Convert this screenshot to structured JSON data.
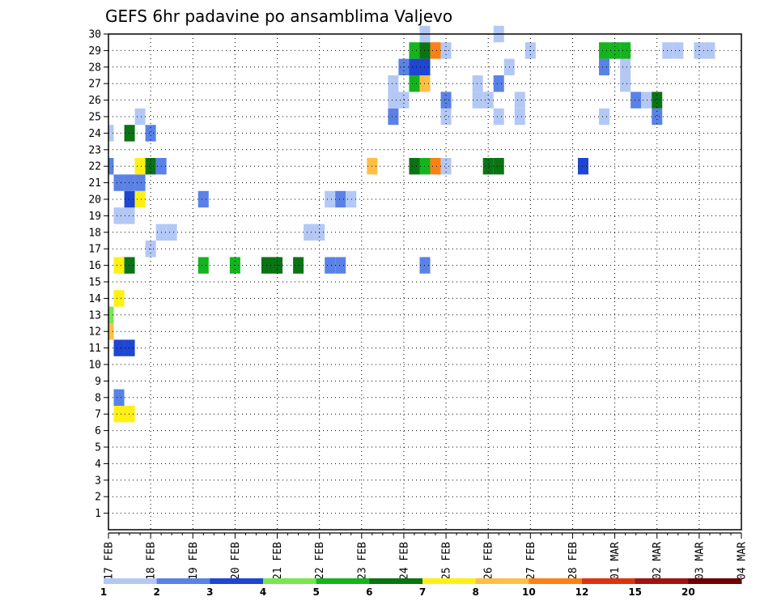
{
  "chart_data": {
    "type": "heatmap",
    "title": "GEFS 6hr padavine po ansamblima Valjevo",
    "x_ticks": [
      "17 FEB",
      "18 FEB",
      "19 FEB",
      "20 FEB",
      "21 FEB",
      "22 FEB",
      "23 FEB",
      "24 FEB",
      "25 FEB",
      "26 FEB",
      "27 FEB",
      "28 FEB",
      "01 MAR",
      "02 MAR",
      "03 MAR",
      "04 MAR"
    ],
    "y_ticks": [
      1,
      2,
      3,
      4,
      5,
      6,
      7,
      8,
      9,
      10,
      11,
      12,
      13,
      14,
      15,
      16,
      17,
      18,
      19,
      20,
      21,
      22,
      23,
      24,
      25,
      26,
      27,
      28,
      29,
      30
    ],
    "x_step_hours": 6,
    "y_range": [
      0,
      30
    ],
    "grid": true,
    "colorbar": {
      "labels": [
        "1",
        "2",
        "3",
        "4",
        "5",
        "6",
        "7",
        "8",
        "10",
        "12",
        "15",
        "20"
      ],
      "colors": [
        "#b4c8f5",
        "#5a82e6",
        "#1e46d2",
        "#78e650",
        "#14b41e",
        "#0a7314",
        "#fff014",
        "#ffbe46",
        "#fa8214",
        "#dc320f",
        "#a0140f",
        "#6e0000"
      ]
    },
    "cells": [
      {
        "m": 7,
        "t": 0,
        "c": 6
      },
      {
        "m": 7,
        "t": 1,
        "c": 6
      },
      {
        "m": 8,
        "t": 0,
        "c": 1
      },
      {
        "m": 11,
        "t": 0,
        "c": 2
      },
      {
        "m": 11,
        "t": 1,
        "c": 2
      },
      {
        "m": 12,
        "t": -1,
        "c": 7
      },
      {
        "m": 13,
        "t": -1,
        "c": 3
      },
      {
        "m": 14,
        "t": 0,
        "c": 6
      },
      {
        "m": 16,
        "t": 0,
        "c": 6
      },
      {
        "m": 16,
        "t": 1,
        "c": 5
      },
      {
        "m": 16,
        "t": 8,
        "c": 4
      },
      {
        "m": 16,
        "t": 11,
        "c": 4
      },
      {
        "m": 16,
        "t": 14,
        "c": 5
      },
      {
        "m": 16,
        "t": 15,
        "c": 5
      },
      {
        "m": 16,
        "t": 17,
        "c": 5
      },
      {
        "m": 16,
        "t": 20,
        "c": 1
      },
      {
        "m": 16,
        "t": 21,
        "c": 1
      },
      {
        "m": 16,
        "t": 29,
        "c": 1
      },
      {
        "m": 17,
        "t": 3,
        "c": 0
      },
      {
        "m": 18,
        "t": 4,
        "c": 0
      },
      {
        "m": 18,
        "t": 5,
        "c": 0
      },
      {
        "m": 18,
        "t": 18,
        "c": 0
      },
      {
        "m": 18,
        "t": 19,
        "c": 0
      },
      {
        "m": 19,
        "t": 0,
        "c": 0
      },
      {
        "m": 19,
        "t": 1,
        "c": 0
      },
      {
        "m": 20,
        "t": 1,
        "c": 2
      },
      {
        "m": 20,
        "t": 2,
        "c": 6
      },
      {
        "m": 20,
        "t": 8,
        "c": 1
      },
      {
        "m": 20,
        "t": 20,
        "c": 0
      },
      {
        "m": 20,
        "t": 21,
        "c": 1
      },
      {
        "m": 20,
        "t": 22,
        "c": 0
      },
      {
        "m": 21,
        "t": 0,
        "c": 1
      },
      {
        "m": 21,
        "t": 1,
        "c": 1
      },
      {
        "m": 21,
        "t": 2,
        "c": 1
      },
      {
        "m": 22,
        "t": -1,
        "c": 1
      },
      {
        "m": 22,
        "t": 2,
        "c": 6
      },
      {
        "m": 22,
        "t": 3,
        "c": 5
      },
      {
        "m": 22,
        "t": 4,
        "c": 1
      },
      {
        "m": 22,
        "t": 24,
        "c": 7
      },
      {
        "m": 22,
        "t": 28,
        "c": 5
      },
      {
        "m": 22,
        "t": 29,
        "c": 4
      },
      {
        "m": 22,
        "t": 30,
        "c": 8
      },
      {
        "m": 22,
        "t": 31,
        "c": 0
      },
      {
        "m": 22,
        "t": 35,
        "c": 5
      },
      {
        "m": 22,
        "t": 36,
        "c": 5
      },
      {
        "m": 22,
        "t": 44,
        "c": 2
      },
      {
        "m": 24,
        "t": -1,
        "c": 0
      },
      {
        "m": 24,
        "t": 1,
        "c": 5
      },
      {
        "m": 24,
        "t": 3,
        "c": 1
      },
      {
        "m": 25,
        "t": 2,
        "c": 0
      },
      {
        "m": 25,
        "t": 26,
        "c": 1
      },
      {
        "m": 25,
        "t": 31,
        "c": 0
      },
      {
        "m": 25,
        "t": 36,
        "c": 0
      },
      {
        "m": 25,
        "t": 38,
        "c": 0
      },
      {
        "m": 25,
        "t": 46,
        "c": 0
      },
      {
        "m": 25,
        "t": 51,
        "c": 1
      },
      {
        "m": 26,
        "t": 26,
        "c": 0
      },
      {
        "m": 26,
        "t": 27,
        "c": 0
      },
      {
        "m": 26,
        "t": 31,
        "c": 1
      },
      {
        "m": 26,
        "t": 34,
        "c": 0
      },
      {
        "m": 26,
        "t": 35,
        "c": 0
      },
      {
        "m": 26,
        "t": 38,
        "c": 0
      },
      {
        "m": 26,
        "t": 49,
        "c": 1
      },
      {
        "m": 26,
        "t": 50,
        "c": 0
      },
      {
        "m": 26,
        "t": 51,
        "c": 5
      },
      {
        "m": 27,
        "t": 26,
        "c": 0
      },
      {
        "m": 27,
        "t": 28,
        "c": 4
      },
      {
        "m": 27,
        "t": 29,
        "c": 7
      },
      {
        "m": 27,
        "t": 34,
        "c": 0
      },
      {
        "m": 27,
        "t": 36,
        "c": 1
      },
      {
        "m": 27,
        "t": 48,
        "c": 0
      },
      {
        "m": 28,
        "t": 27,
        "c": 1
      },
      {
        "m": 28,
        "t": 28,
        "c": 2
      },
      {
        "m": 28,
        "t": 29,
        "c": 2
      },
      {
        "m": 28,
        "t": 37,
        "c": 0
      },
      {
        "m": 28,
        "t": 46,
        "c": 1
      },
      {
        "m": 28,
        "t": 48,
        "c": 0
      },
      {
        "m": 29,
        "t": 28,
        "c": 4
      },
      {
        "m": 29,
        "t": 29,
        "c": 5
      },
      {
        "m": 29,
        "t": 30,
        "c": 8
      },
      {
        "m": 29,
        "t": 31,
        "c": 0
      },
      {
        "m": 29,
        "t": 39,
        "c": 0
      },
      {
        "m": 29,
        "t": 46,
        "c": 4
      },
      {
        "m": 29,
        "t": 47,
        "c": 4
      },
      {
        "m": 29,
        "t": 48,
        "c": 4
      },
      {
        "m": 29,
        "t": 52,
        "c": 0
      },
      {
        "m": 29,
        "t": 53,
        "c": 0
      },
      {
        "m": 29,
        "t": 55,
        "c": 0
      },
      {
        "m": 29,
        "t": 56,
        "c": 0
      },
      {
        "m": 30,
        "t": 29,
        "c": 0
      },
      {
        "m": 30,
        "t": 36,
        "c": 0
      }
    ]
  }
}
